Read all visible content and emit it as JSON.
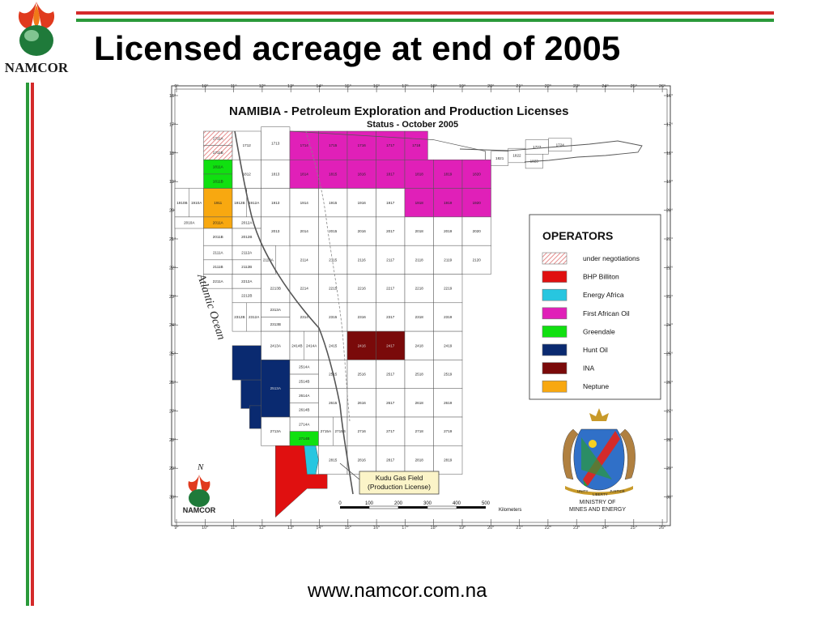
{
  "slide": {
    "title": "Licensed acreage at end of 2005",
    "footer_url": "www.namcor.com.na",
    "logo_text": "NAMCOR"
  },
  "map": {
    "title": "NAMIBIA  - Petroleum Exploration and Production Licenses",
    "subtitle": "Status - October 2005",
    "ocean_label": "Atlantic Ocean",
    "north_label": "N",
    "logo_text": "NAMCOR",
    "kudu_label_line1": "Kudu Gas Field",
    "kudu_label_line2": "(Production License)",
    "scale_labels": [
      "0",
      "100",
      "200",
      "300",
      "400",
      "500"
    ],
    "scale_unit": "Kilometers",
    "ministry_line1": "MINISTRY OF",
    "ministry_line2": "MINES AND ENERGY",
    "motto_left": "UNITY",
    "motto_mid": "LIBERTY",
    "motto_right": "JUSTICE",
    "longitude_labels": [
      "9°",
      "10°",
      "11°",
      "12°",
      "13°",
      "14°",
      "15°",
      "16°",
      "17°",
      "18°",
      "19°",
      "20°",
      "21°",
      "22°",
      "23°",
      "24°",
      "25°",
      "26°"
    ],
    "latitude_labels": [
      "16°",
      "17°",
      "18°",
      "19°",
      "20°",
      "21°",
      "22°",
      "23°",
      "24°",
      "25°",
      "26°",
      "27°",
      "28°",
      "29°",
      "30°"
    ]
  },
  "legend": {
    "title": "OPERATORS",
    "items": [
      {
        "label": "under negotiations",
        "color": "#f4b8b8",
        "pattern": "hatch"
      },
      {
        "label": "BHP Billiton",
        "color": "#e01010"
      },
      {
        "label": "Energy Africa",
        "color": "#27c6e0"
      },
      {
        "label": "First African Oil",
        "color": "#e020b8"
      },
      {
        "label": "Greendale",
        "color": "#10e010"
      },
      {
        "label": "Hunt Oil",
        "color": "#0a2a70"
      },
      {
        "label": "INA",
        "color": "#7a0a0a"
      },
      {
        "label": "Neptune",
        "color": "#f8a810"
      }
    ]
  },
  "blocks": [
    {
      "id": "1711A",
      "operator": "under negotiations"
    },
    {
      "id": "1711B",
      "operator": "under negotiations"
    },
    {
      "id": "1712",
      "operator": "open"
    },
    {
      "id": "1713",
      "operator": "open"
    },
    {
      "id": "1714",
      "operator": "First African Oil"
    },
    {
      "id": "1715",
      "operator": "First African Oil"
    },
    {
      "id": "1716",
      "operator": "First African Oil"
    },
    {
      "id": "1717",
      "operator": "First African Oil"
    },
    {
      "id": "1718",
      "operator": "First African Oil"
    },
    {
      "id": "1811A",
      "operator": "Greendale"
    },
    {
      "id": "1811B",
      "operator": "Greendale"
    },
    {
      "id": "1812",
      "operator": "open"
    },
    {
      "id": "1813",
      "operator": "open"
    },
    {
      "id": "1814",
      "operator": "First African Oil"
    },
    {
      "id": "1815",
      "operator": "First African Oil"
    },
    {
      "id": "1816",
      "operator": "First African Oil"
    },
    {
      "id": "1817",
      "operator": "First African Oil"
    },
    {
      "id": "1818",
      "operator": "First African Oil"
    },
    {
      "id": "1819",
      "operator": "First African Oil"
    },
    {
      "id": "1820",
      "operator": "First African Oil"
    },
    {
      "id": "1821",
      "operator": "open"
    },
    {
      "id": "1822",
      "operator": "open"
    },
    {
      "id": "1823",
      "operator": "open"
    },
    {
      "id": "1723",
      "operator": "open"
    },
    {
      "id": "1724",
      "operator": "open"
    },
    {
      "id": "1910B",
      "operator": "open"
    },
    {
      "id": "1910A",
      "operator": "open"
    },
    {
      "id": "1911",
      "operator": "Neptune"
    },
    {
      "id": "1912B",
      "operator": "open"
    },
    {
      "id": "1912A",
      "operator": "open"
    },
    {
      "id": "1913",
      "operator": "open"
    },
    {
      "id": "1914",
      "operator": "open"
    },
    {
      "id": "1915",
      "operator": "open"
    },
    {
      "id": "1916",
      "operator": "open"
    },
    {
      "id": "1917",
      "operator": "open"
    },
    {
      "id": "1918",
      "operator": "First African Oil"
    },
    {
      "id": "1919",
      "operator": "First African Oil"
    },
    {
      "id": "1920",
      "operator": "First African Oil"
    },
    {
      "id": "2010A",
      "operator": "open"
    },
    {
      "id": "2011A",
      "operator": "Neptune"
    },
    {
      "id": "2012A",
      "operator": "open"
    },
    {
      "id": "2011B",
      "operator": "open"
    },
    {
      "id": "2012B",
      "operator": "open"
    },
    {
      "id": "2013",
      "operator": "open"
    },
    {
      "id": "2014",
      "operator": "open"
    },
    {
      "id": "2015",
      "operator": "open"
    },
    {
      "id": "2016",
      "operator": "open"
    },
    {
      "id": "2017",
      "operator": "open"
    },
    {
      "id": "2018",
      "operator": "open"
    },
    {
      "id": "2019",
      "operator": "open"
    },
    {
      "id": "2020",
      "operator": "open"
    },
    {
      "id": "2111A",
      "operator": "open"
    },
    {
      "id": "2112A",
      "operator": "open"
    },
    {
      "id": "2112B",
      "operator": "open"
    },
    {
      "id": "2113A",
      "operator": "open"
    },
    {
      "id": "2111B",
      "operator": "open"
    },
    {
      "id": "2114",
      "operator": "open"
    },
    {
      "id": "2115",
      "operator": "open"
    },
    {
      "id": "2116",
      "operator": "open"
    },
    {
      "id": "2117",
      "operator": "open"
    },
    {
      "id": "2118",
      "operator": "open"
    },
    {
      "id": "2119",
      "operator": "open"
    },
    {
      "id": "2120",
      "operator": "open"
    },
    {
      "id": "2211A",
      "operator": "open"
    },
    {
      "id": "2212A",
      "operator": "open"
    },
    {
      "id": "2212B",
      "operator": "open"
    },
    {
      "id": "2213B",
      "operator": "open"
    },
    {
      "id": "2214",
      "operator": "open"
    },
    {
      "id": "2215",
      "operator": "open"
    },
    {
      "id": "2216",
      "operator": "open"
    },
    {
      "id": "2217",
      "operator": "open"
    },
    {
      "id": "2218",
      "operator": "open"
    },
    {
      "id": "2219",
      "operator": "open"
    },
    {
      "id": "2313A",
      "operator": "open"
    },
    {
      "id": "2312B",
      "operator": "open"
    },
    {
      "id": "2312A",
      "operator": "open"
    },
    {
      "id": "2313B",
      "operator": "open"
    },
    {
      "id": "2314",
      "operator": "open"
    },
    {
      "id": "2315",
      "operator": "open"
    },
    {
      "id": "2316",
      "operator": "open"
    },
    {
      "id": "2317",
      "operator": "open"
    },
    {
      "id": "2318",
      "operator": "open"
    },
    {
      "id": "2319",
      "operator": "open"
    },
    {
      "id": "2413A",
      "operator": "open"
    },
    {
      "id": "2414B",
      "operator": "open"
    },
    {
      "id": "2414A",
      "operator": "open"
    },
    {
      "id": "2415",
      "operator": "open"
    },
    {
      "id": "2416",
      "operator": "INA"
    },
    {
      "id": "2417",
      "operator": "INA"
    },
    {
      "id": "2418",
      "operator": "open"
    },
    {
      "id": "2419",
      "operator": "open"
    },
    {
      "id": "2513A",
      "operator": "Hunt Oil"
    },
    {
      "id": "2514A",
      "operator": "open"
    },
    {
      "id": "2514B",
      "operator": "open"
    },
    {
      "id": "2515",
      "operator": "open"
    },
    {
      "id": "2516",
      "operator": "open"
    },
    {
      "id": "2517",
      "operator": "open"
    },
    {
      "id": "2518",
      "operator": "open"
    },
    {
      "id": "2519",
      "operator": "open"
    },
    {
      "id": "2614A",
      "operator": "open"
    },
    {
      "id": "2614B",
      "operator": "open"
    },
    {
      "id": "2615",
      "operator": "open"
    },
    {
      "id": "2616",
      "operator": "open"
    },
    {
      "id": "2617",
      "operator": "open"
    },
    {
      "id": "2618",
      "operator": "open"
    },
    {
      "id": "2619",
      "operator": "open"
    },
    {
      "id": "2714A",
      "operator": "open"
    },
    {
      "id": "2713A",
      "operator": "open"
    },
    {
      "id": "2714B",
      "operator": "Greendale"
    },
    {
      "id": "2715A",
      "operator": "open"
    },
    {
      "id": "2715B",
      "operator": "open"
    },
    {
      "id": "2716",
      "operator": "open"
    },
    {
      "id": "2717",
      "operator": "open"
    },
    {
      "id": "2718",
      "operator": "open"
    },
    {
      "id": "2719",
      "operator": "open"
    },
    {
      "id": "2815",
      "operator": "open"
    },
    {
      "id": "2816",
      "operator": "open"
    },
    {
      "id": "2817",
      "operator": "open"
    },
    {
      "id": "2818",
      "operator": "open"
    },
    {
      "id": "2819",
      "operator": "open"
    }
  ]
}
